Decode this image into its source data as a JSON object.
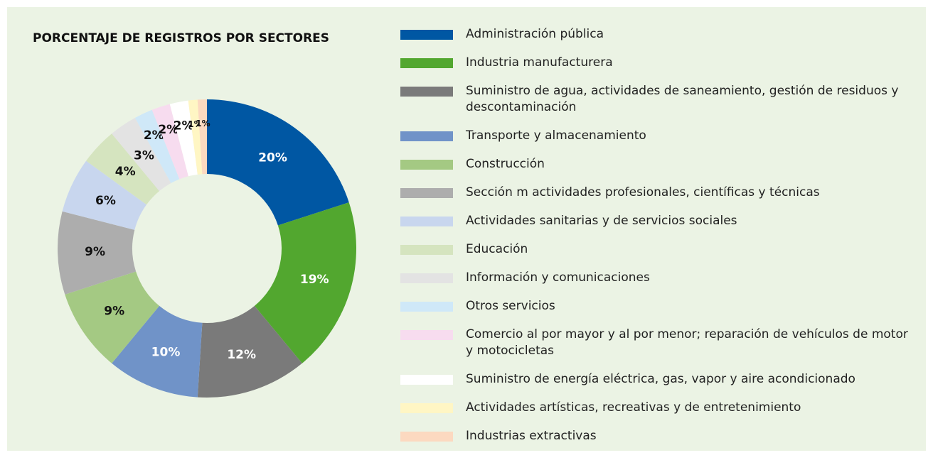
{
  "chart_data": {
    "type": "donut",
    "title": "PORCENTAJE DE REGISTROS POR SECTORES",
    "categories": [
      "Administración pública",
      "Industria manufacturera",
      "Suministro de agua, actividades de saneamiento, gestión de residuos y descontaminación",
      "Transporte y almacenamiento",
      "Construcción",
      "Sección m actividades profesionales, científicas y técnicas",
      "Actividades sanitarias y de servicios sociales",
      "Educación",
      "Información y comunicaciones",
      "Otros servicios",
      "Comercio al por mayor y al por menor; reparación de vehículos de motor y motocicletas",
      "Suministro de energía eléctrica, gas, vapor y aire acondicionado",
      "Actividades artísticas, recreativas y de entretenimiento",
      "Industrias extractivas"
    ],
    "values": [
      20,
      19,
      12,
      10,
      9,
      9,
      6,
      4,
      3,
      2,
      2,
      2,
      1,
      1
    ],
    "value_labels": [
      "20%",
      "19%",
      "12%",
      "10%",
      "9%",
      "9%",
      "6%",
      "4%",
      "3%",
      "2%",
      "2%",
      "2%",
      "1%",
      "1%"
    ],
    "colors": [
      "#0057a3",
      "#52a72f",
      "#7a7a7a",
      "#7093c8",
      "#a4c983",
      "#adadad",
      "#c8d6ee",
      "#d5e4bf",
      "#e3e3e3",
      "#cfe8f8",
      "#f7dcef",
      "#ffffff",
      "#fff6c4",
      "#fcd9c0"
    ],
    "legend": "right"
  }
}
